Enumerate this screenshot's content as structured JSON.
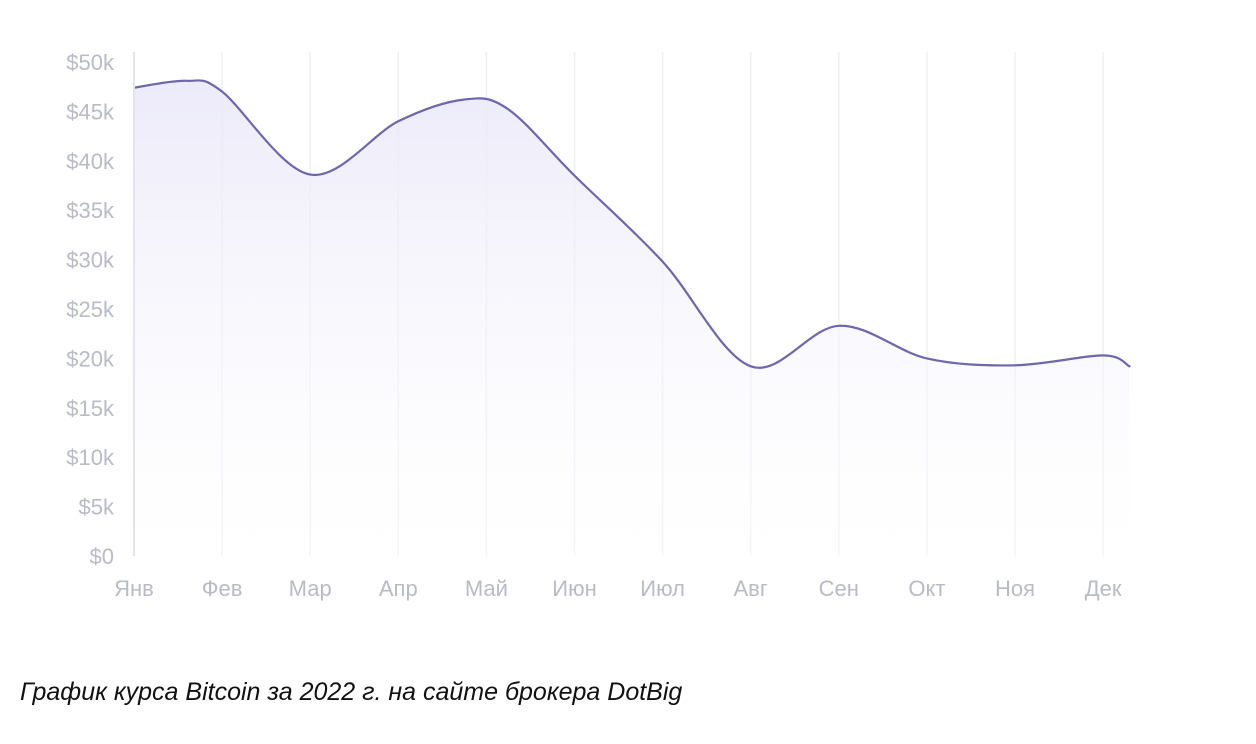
{
  "caption": "График курса Bitcoin за 2022 г. на сайте брокера DotBig",
  "chart_data": {
    "type": "area",
    "title": "",
    "xlabel": "",
    "ylabel": "",
    "categories": [
      "Янв",
      "Фев",
      "Мар",
      "Апр",
      "Май",
      "Июн",
      "Июл",
      "Авг",
      "Сен",
      "Окт",
      "Ноя",
      "Дек"
    ],
    "y_ticks": [
      "$0",
      "$5k",
      "$10k",
      "$15k",
      "$20k",
      "$25k",
      "$30k",
      "$35k",
      "$40k",
      "$45k",
      "$50k"
    ],
    "ylim": [
      0,
      50000
    ],
    "grid": "vertical",
    "legend": "none",
    "series": [
      {
        "points": [
          {
            "x": 0.0,
            "y": 47400
          },
          {
            "x": 0.6,
            "y": 48100
          },
          {
            "x": 1.0,
            "y": 47000
          },
          {
            "x": 2.0,
            "y": 38600
          },
          {
            "x": 3.0,
            "y": 44000
          },
          {
            "x": 3.75,
            "y": 46200
          },
          {
            "x": 4.25,
            "y": 45200
          },
          {
            "x": 5.0,
            "y": 38500
          },
          {
            "x": 6.0,
            "y": 29800
          },
          {
            "x": 7.0,
            "y": 19200
          },
          {
            "x": 8.0,
            "y": 23300
          },
          {
            "x": 9.0,
            "y": 20000
          },
          {
            "x": 10.0,
            "y": 19300
          },
          {
            "x": 11.0,
            "y": 20300
          },
          {
            "x": 11.3,
            "y": 19200
          }
        ]
      }
    ],
    "colors": {
      "line": "#6e66ae",
      "fill_top": "#e9e7f8",
      "fill_bottom": "#ffffff"
    }
  }
}
